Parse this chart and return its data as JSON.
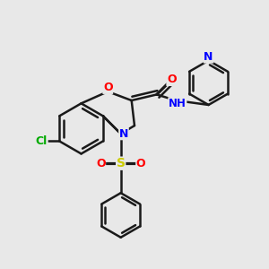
{
  "bg_color": "#e8e8e8",
  "bond_color": "#1a1a1a",
  "line_width": 1.8,
  "atom_colors": {
    "N": "#0000ff",
    "O": "#ff0000",
    "S": "#cccc00",
    "Cl": "#00aa00",
    "H": "#555555",
    "C": "#1a1a1a"
  },
  "font_size": 9
}
